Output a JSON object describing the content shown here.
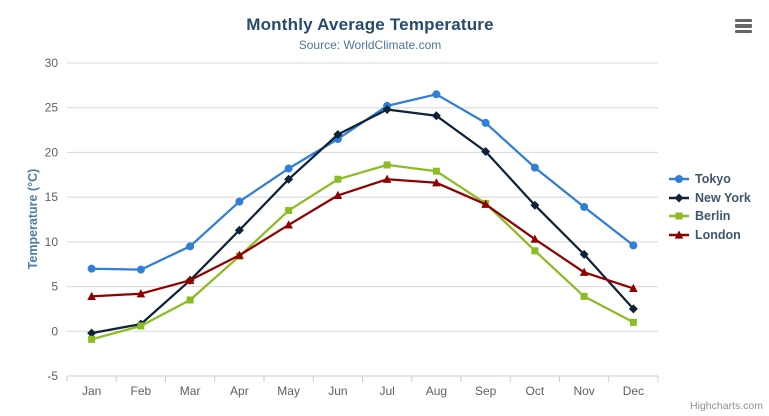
{
  "chart": {
    "credit": "Highcharts.com",
    "context_menu_icon": "hamburger-icon"
  },
  "chart_data": {
    "type": "line",
    "title": "Monthly Average Temperature",
    "subtitle": "Source: WorldClimate.com",
    "categories": [
      "Jan",
      "Feb",
      "Mar",
      "Apr",
      "May",
      "Jun",
      "Jul",
      "Aug",
      "Sep",
      "Oct",
      "Nov",
      "Dec"
    ],
    "xlabel": "",
    "ylabel": "Temperature (°C)",
    "ylim": [
      -5,
      30
    ],
    "ytick_step": 5,
    "grid": true,
    "legend_position": "right",
    "series": [
      {
        "name": "Tokyo",
        "color": "#2f7ed8",
        "marker": "circle",
        "values": [
          7.0,
          6.9,
          9.5,
          14.5,
          18.2,
          21.5,
          25.2,
          26.5,
          23.3,
          18.3,
          13.9,
          9.6
        ]
      },
      {
        "name": "New York",
        "color": "#0d233a",
        "marker": "diamond",
        "values": [
          -0.2,
          0.8,
          5.7,
          11.3,
          17.0,
          22.0,
          24.8,
          24.1,
          20.1,
          14.1,
          8.6,
          2.5
        ]
      },
      {
        "name": "Berlin",
        "color": "#8bbc21",
        "marker": "square",
        "values": [
          -0.9,
          0.6,
          3.5,
          8.4,
          13.5,
          17.0,
          18.6,
          17.9,
          14.3,
          9.0,
          3.9,
          1.0
        ]
      },
      {
        "name": "London",
        "color": "#910000",
        "marker": "triangle",
        "values": [
          3.9,
          4.2,
          5.7,
          8.5,
          11.9,
          15.2,
          17.0,
          16.6,
          14.2,
          10.3,
          6.6,
          4.8
        ]
      }
    ],
    "credit": "Highcharts.com"
  }
}
